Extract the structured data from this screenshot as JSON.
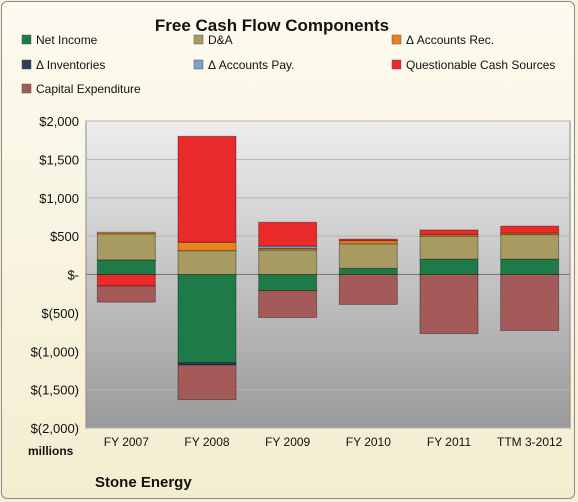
{
  "chart_data": {
    "type": "bar",
    "stacked": true,
    "title": "Free Cash Flow Components",
    "unit_label": "millions",
    "company": "Stone Energy",
    "categories": [
      "FY 2007",
      "FY 2008",
      "FY 2009",
      "FY 2010",
      "FY 2011",
      "TTM 3-2012"
    ],
    "ylim": [
      -2000,
      2000
    ],
    "yticks": [
      2000,
      1500,
      1000,
      500,
      0,
      -500,
      -1000,
      -1500,
      -2000
    ],
    "ytick_labels": [
      "$2,000",
      "$1,500",
      "$1,000",
      "$500",
      "$-",
      "$(500)",
      "$(1,000)",
      "$(1,500)",
      "$(2,000)"
    ],
    "legend_position": "top",
    "series": [
      {
        "name": "Net Income",
        "color": "#1f7a4a",
        "values": [
          190,
          -1150,
          -210,
          80,
          200,
          200
        ]
      },
      {
        "name": "D&A",
        "color": "#a89b62",
        "values": [
          340,
          310,
          320,
          320,
          300,
          320
        ]
      },
      {
        "name": "Δ Accounts Rec.",
        "color": "#e8821e",
        "values": [
          20,
          110,
          20,
          40,
          20,
          20
        ]
      },
      {
        "name": "Δ Inventories",
        "color": "#2b3f57",
        "values": [
          0,
          -30,
          0,
          0,
          0,
          0
        ]
      },
      {
        "name": "Δ Accounts Pay.",
        "color": "#7da2c8",
        "values": [
          0,
          0,
          30,
          0,
          0,
          0
        ]
      },
      {
        "name": "Questionable Cash Sources",
        "color": "#ea2a2a",
        "values": [
          -150,
          1380,
          310,
          20,
          60,
          90
        ]
      },
      {
        "name": "Capital Expenditure",
        "color": "#a35a58",
        "values": [
          -210,
          -450,
          -350,
          -390,
          -770,
          -730
        ]
      }
    ]
  }
}
